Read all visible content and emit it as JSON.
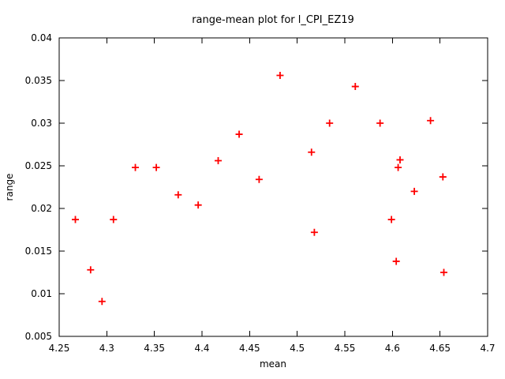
{
  "window": {
    "background": "#ffffff"
  },
  "chart_data": {
    "type": "scatter",
    "title": "range-mean plot for l_CPI_EZ19",
    "xlabel": "mean",
    "ylabel": "range",
    "xlim": [
      4.25,
      4.7
    ],
    "ylim": [
      0.005,
      0.04
    ],
    "x_ticks": [
      4.25,
      4.3,
      4.35,
      4.4,
      4.45,
      4.5,
      4.55,
      4.6,
      4.65,
      4.7
    ],
    "y_ticks": [
      0.005,
      0.01,
      0.015,
      0.02,
      0.025,
      0.03,
      0.035,
      0.04
    ],
    "grid": false,
    "legend_position": "none",
    "marker": {
      "shape": "plus",
      "size": 9,
      "color": "#ff0000"
    },
    "colors": {
      "marker": "#ff0000",
      "axis": "#000000",
      "text": "#000000",
      "background": "#ffffff"
    },
    "series": [
      {
        "name": "range-mean pairs",
        "points": [
          [
            4.267,
            0.0187
          ],
          [
            4.283,
            0.0128
          ],
          [
            4.295,
            0.0091
          ],
          [
            4.307,
            0.0187
          ],
          [
            4.33,
            0.0248
          ],
          [
            4.352,
            0.0248
          ],
          [
            4.375,
            0.0216
          ],
          [
            4.396,
            0.0204
          ],
          [
            4.417,
            0.0256
          ],
          [
            4.439,
            0.0287
          ],
          [
            4.46,
            0.0234
          ],
          [
            4.482,
            0.0356
          ],
          [
            4.515,
            0.0266
          ],
          [
            4.518,
            0.0172
          ],
          [
            4.534,
            0.03
          ],
          [
            4.561,
            0.0343
          ],
          [
            4.587,
            0.03
          ],
          [
            4.599,
            0.0187
          ],
          [
            4.604,
            0.0138
          ],
          [
            4.606,
            0.0248
          ],
          [
            4.608,
            0.0257
          ],
          [
            4.623,
            0.022
          ],
          [
            4.64,
            0.0303
          ],
          [
            4.653,
            0.0237
          ],
          [
            4.654,
            0.0125
          ]
        ]
      }
    ]
  }
}
